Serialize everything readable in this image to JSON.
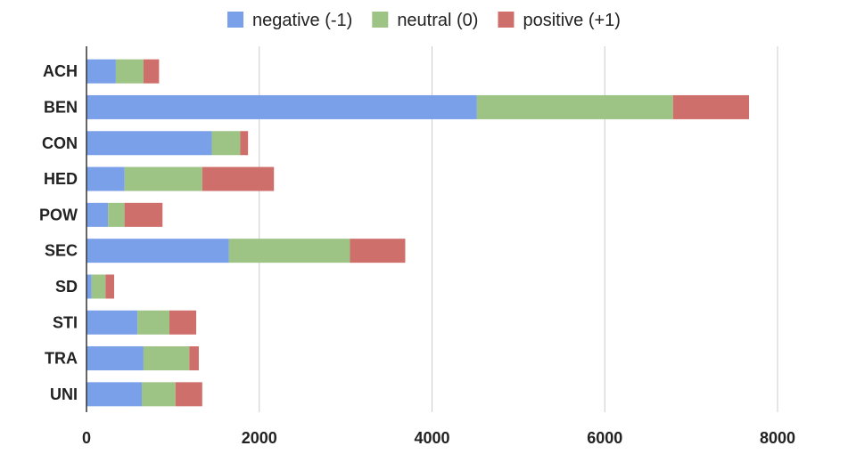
{
  "chart_data": {
    "type": "bar",
    "orientation": "horizontal",
    "stacked": true,
    "title": "",
    "xlabel": "",
    "ylabel": "",
    "categories": [
      "ACH",
      "BEN",
      "CON",
      "HED",
      "POW",
      "SEC",
      "SD",
      "STI",
      "TRA",
      "UNI"
    ],
    "series": [
      {
        "name": "negative (-1)",
        "color": "#7ba0ea",
        "values": [
          340,
          4520,
          1450,
          440,
          250,
          1650,
          60,
          590,
          660,
          640
        ]
      },
      {
        "name": "neutral (0)",
        "color": "#9dc385",
        "values": [
          320,
          2270,
          330,
          900,
          190,
          1400,
          160,
          370,
          530,
          390
        ]
      },
      {
        "name": "positive (+1)",
        "color": "#cf6f6b",
        "values": [
          180,
          880,
          90,
          830,
          440,
          640,
          100,
          310,
          110,
          310
        ]
      }
    ],
    "xlim": [
      0,
      8000
    ],
    "xticks": [
      "0",
      "2000",
      "4000",
      "6000",
      "8000"
    ],
    "grid": true,
    "legend_position": "top"
  }
}
